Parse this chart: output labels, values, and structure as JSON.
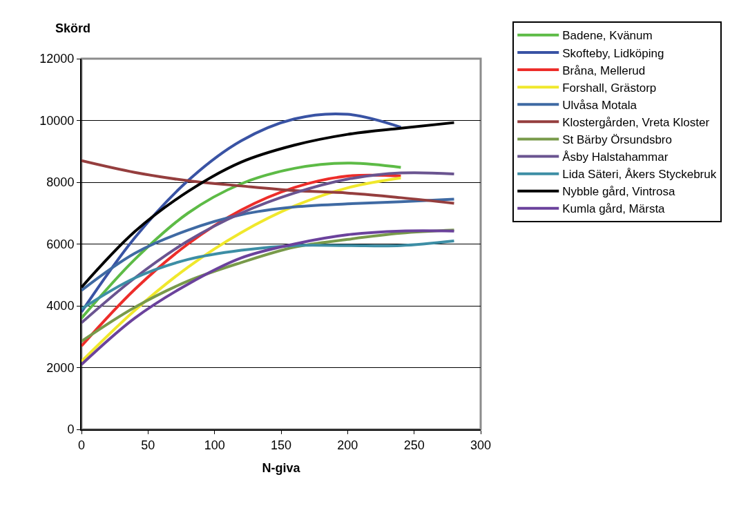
{
  "chart_data": {
    "type": "line",
    "xlabel": "N-giva",
    "ylabel": "Skörd",
    "xlim": [
      0,
      300
    ],
    "ylim": [
      0,
      12000
    ],
    "xticks": [
      0,
      50,
      100,
      150,
      200,
      250,
      300
    ],
    "yticks": [
      0,
      2000,
      4000,
      6000,
      8000,
      10000,
      12000
    ],
    "grid": "y",
    "legend": "right",
    "marker": "none",
    "line_style": "solid",
    "x": [
      0,
      40,
      80,
      120,
      160,
      200,
      240,
      280
    ],
    "series": [
      {
        "name": "Badene, Kvänum",
        "color": "#5dbb46",
        "values": [
          3600,
          5500,
          7000,
          7950,
          8450,
          8620,
          8480,
          null
        ]
      },
      {
        "name": "Skofteby, Lidköping",
        "color": "#3953a4",
        "values": [
          3800,
          6200,
          8050,
          9340,
          10050,
          10200,
          9780,
          null
        ]
      },
      {
        "name": "Bråna, Mellerud",
        "color": "#ed2d2a",
        "values": [
          2700,
          4530,
          6000,
          7100,
          7830,
          8200,
          8200,
          null
        ]
      },
      {
        "name": "Forshall, Grästorp",
        "color": "#f0e82c",
        "values": [
          2200,
          3850,
          5250,
          6370,
          7230,
          7820,
          8140,
          null
        ]
      },
      {
        "name": "Ulvåsa Motala",
        "color": "#3f6aa3",
        "values": [
          4500,
          5700,
          6450,
          6950,
          7200,
          7300,
          7370,
          7450
        ]
      },
      {
        "name": "Klostergården, Vreta Kloster",
        "color": "#953e3e",
        "values": [
          8700,
          8320,
          8050,
          7880,
          7730,
          7650,
          7500,
          7320
        ]
      },
      {
        "name": "St Bärby Örsundsbro",
        "color": "#789a4a",
        "values": [
          2850,
          3950,
          4800,
          5400,
          5900,
          6150,
          6350,
          6450
        ]
      },
      {
        "name": "Åsby Halstahammar",
        "color": "#6a5490",
        "values": [
          3450,
          4900,
          6100,
          7000,
          7650,
          8100,
          8300,
          8270
        ]
      },
      {
        "name": "Lida Säteri, Åkers Styckebruk",
        "color": "#3d8ea5",
        "values": [
          3900,
          4900,
          5500,
          5800,
          5950,
          5950,
          5950,
          6100
        ]
      },
      {
        "name": "Nybble gård, Vintrosa",
        "color": "#000000",
        "values": [
          4600,
          6400,
          7700,
          8650,
          9200,
          9550,
          9750,
          9930
        ]
      },
      {
        "name": "Kumla gård, Märsta",
        "color": "#6b429c",
        "values": [
          2100,
          3600,
          4700,
          5550,
          6000,
          6300,
          6420,
          6420
        ]
      }
    ]
  }
}
